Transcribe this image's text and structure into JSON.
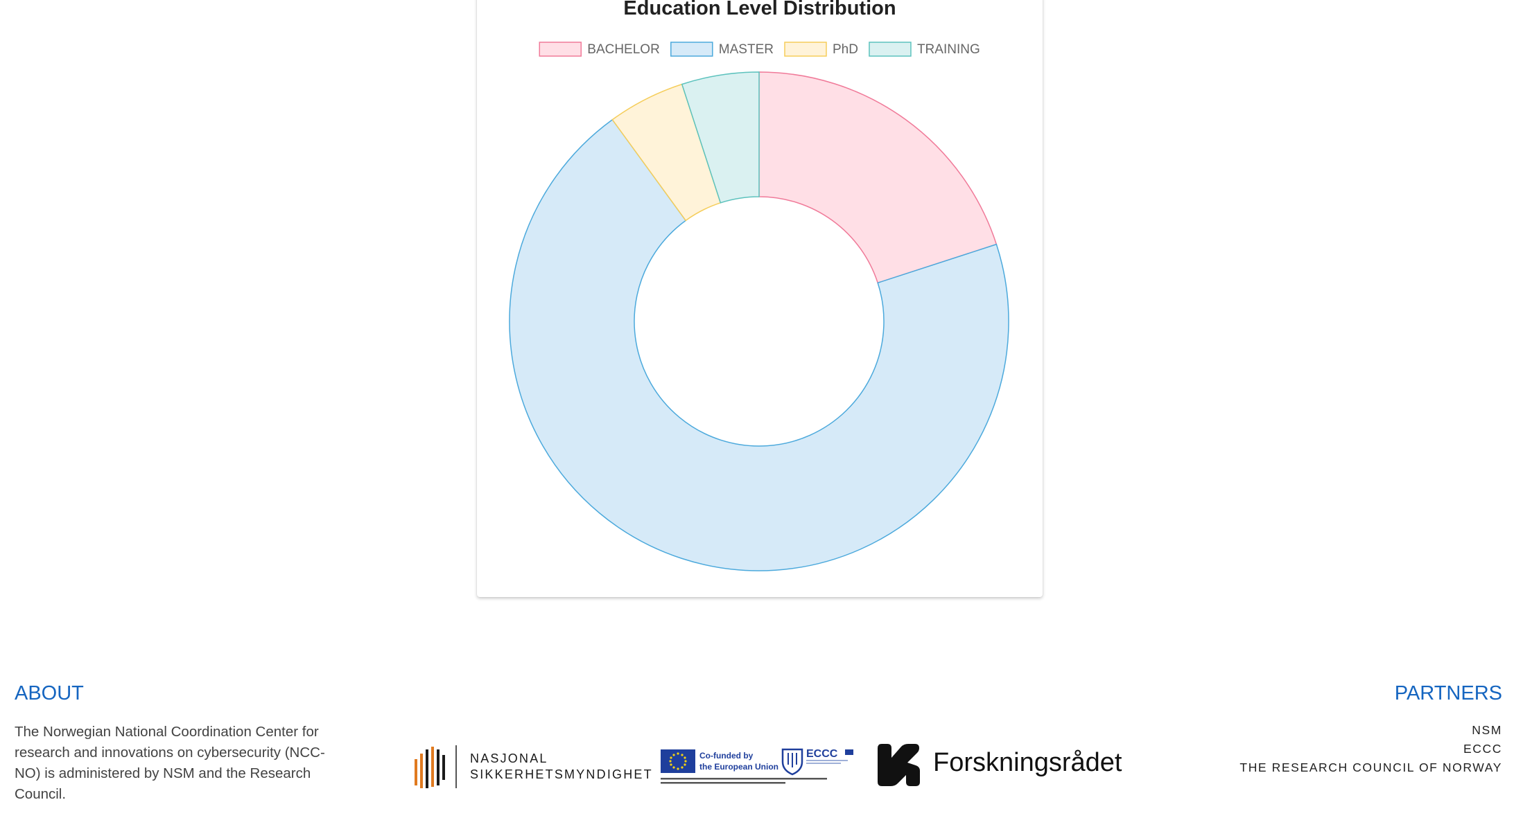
{
  "chart_data": {
    "type": "doughnut",
    "title": "Education Level Distribution",
    "categories": [
      "BACHELOR",
      "MASTER",
      "PhD",
      "TRAINING"
    ],
    "values": [
      20,
      70,
      5,
      5
    ],
    "legend_position": "top",
    "colors": {
      "fills": [
        "#ffdfe6",
        "#d6eaf8",
        "#fff3d9",
        "#daf1f1"
      ],
      "strokes": [
        "#f07a99",
        "#4ba9dc",
        "#f5cd5a",
        "#5cc2bd"
      ]
    }
  },
  "footer": {
    "about": {
      "title": "ABOUT",
      "text": "The Norwegian National Coordination Center for research and innovations on cybersecurity (NCC-NO) is administered by NSM and the Research Council."
    },
    "partners": {
      "title": "PARTNERS",
      "items": [
        "NSM",
        "ECCC",
        "THE RESEARCH COUNCIL OF NORWAY"
      ]
    },
    "logos": {
      "nsm": [
        "NASJONAL",
        "SIKKERHETSMYNDIGHET"
      ],
      "eu": [
        "Co-funded by",
        "the European Union",
        "ECCC"
      ],
      "forsk": "Forskningsrådet"
    }
  }
}
